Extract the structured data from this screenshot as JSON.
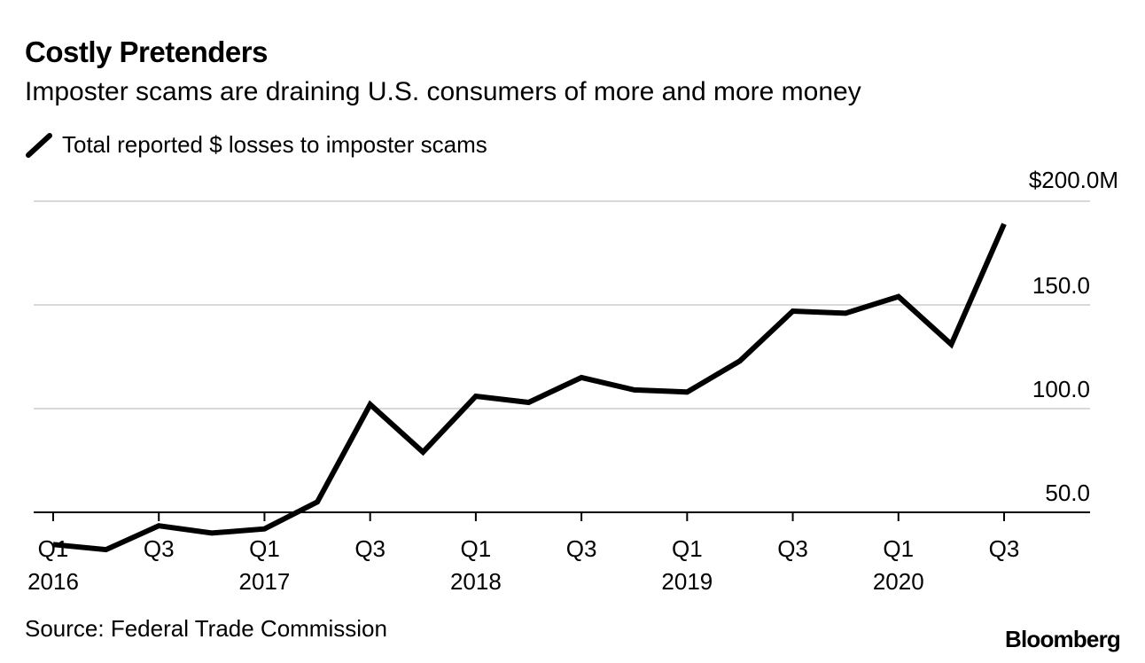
{
  "header": {
    "title": "Costly Pretenders",
    "subtitle": "Imposter scams are draining U.S. consumers of more and more money"
  },
  "footer": {
    "source": "Source: Federal Trade Commission",
    "brand": "Bloomberg"
  },
  "colors": {
    "line": "#000000",
    "grid": "#d9d9d9",
    "axis": "#000000"
  },
  "chart_data": {
    "type": "line",
    "legend": [
      "Total reported $ losses to imposter scams"
    ],
    "x": [
      "2016 Q1",
      "2016 Q2",
      "2016 Q3",
      "2016 Q4",
      "2017 Q1",
      "2017 Q2",
      "2017 Q3",
      "2017 Q4",
      "2018 Q1",
      "2018 Q2",
      "2018 Q3",
      "2018 Q4",
      "2019 Q1",
      "2019 Q2",
      "2019 Q3",
      "2019 Q4",
      "2020 Q1",
      "2020 Q2",
      "2020 Q3"
    ],
    "series": [
      {
        "name": "Total reported $ losses to imposter scams",
        "values": [
          34.5,
          32,
          43.5,
          40,
          42,
          55,
          102,
          79,
          106,
          103,
          115,
          109,
          108,
          123,
          147,
          146,
          154,
          131,
          189
        ]
      }
    ],
    "ylim": [
      30,
      200
    ],
    "yticks": [
      {
        "value": 50,
        "label": "50.0"
      },
      {
        "value": 100,
        "label": "100.0"
      },
      {
        "value": 150,
        "label": "150.0"
      },
      {
        "value": 200,
        "label": "$200.0M"
      }
    ],
    "xticks": [
      {
        "index": 0,
        "label": "Q1",
        "year": "2016"
      },
      {
        "index": 2,
        "label": "Q3",
        "year": ""
      },
      {
        "index": 4,
        "label": "Q1",
        "year": "2017"
      },
      {
        "index": 6,
        "label": "Q3",
        "year": ""
      },
      {
        "index": 8,
        "label": "Q1",
        "year": "2018"
      },
      {
        "index": 10,
        "label": "Q3",
        "year": ""
      },
      {
        "index": 12,
        "label": "Q1",
        "year": "2019"
      },
      {
        "index": 14,
        "label": "Q3",
        "year": ""
      },
      {
        "index": 16,
        "label": "Q1",
        "year": "2020"
      },
      {
        "index": 18,
        "label": "Q3",
        "year": ""
      }
    ],
    "grid": true,
    "legend_position": "top-left"
  }
}
